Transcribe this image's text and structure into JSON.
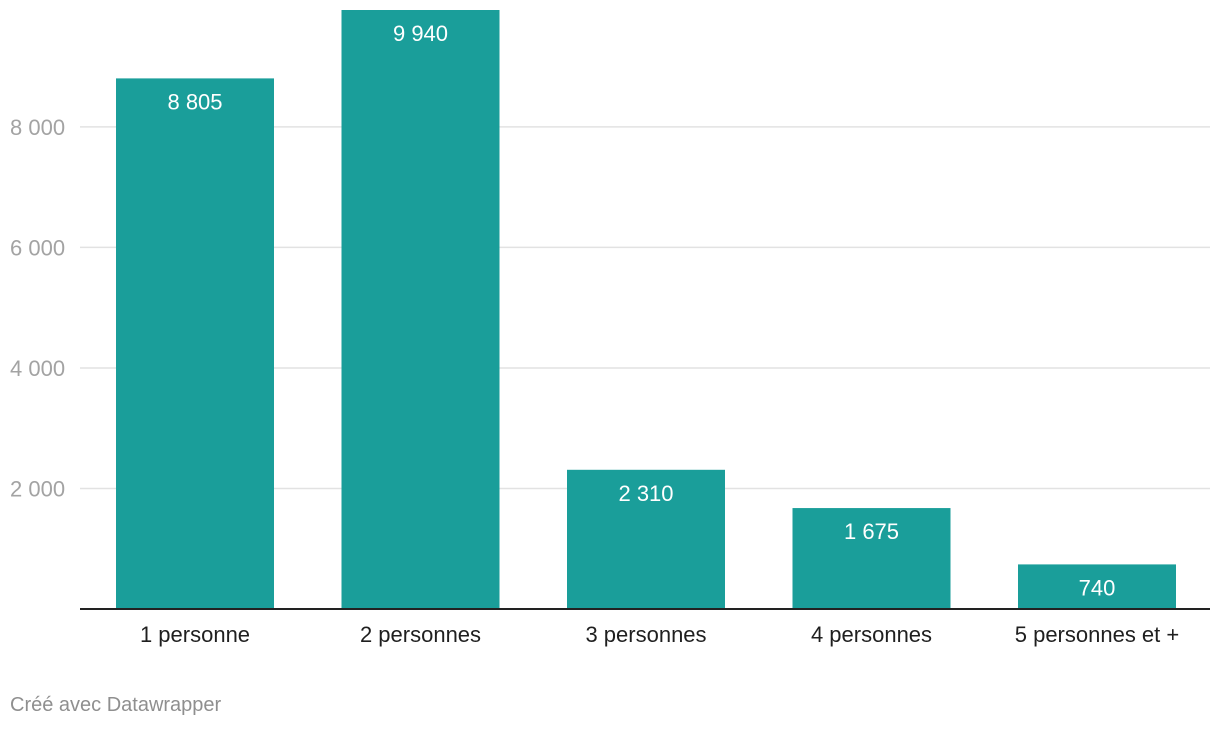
{
  "chart_data": {
    "type": "bar",
    "categories": [
      "1 personne",
      "2 personnes",
      "3 personnes",
      "4 personnes",
      "5 personnes et +"
    ],
    "values": [
      8805,
      9940,
      2310,
      1675,
      740
    ],
    "value_labels": [
      "8 805",
      "9 940",
      "2 310",
      "1 675",
      "740"
    ],
    "yticks": [
      2000,
      4000,
      6000,
      8000
    ],
    "ytick_labels": [
      "2 000",
      "4 000",
      "6 000",
      "8 000"
    ],
    "ylim": [
      0,
      9940
    ],
    "grid": true,
    "bar_color": "#1a9e9a",
    "title": "",
    "xlabel": "",
    "ylabel": ""
  },
  "footer": {
    "credit": "Créé avec Datawrapper"
  }
}
